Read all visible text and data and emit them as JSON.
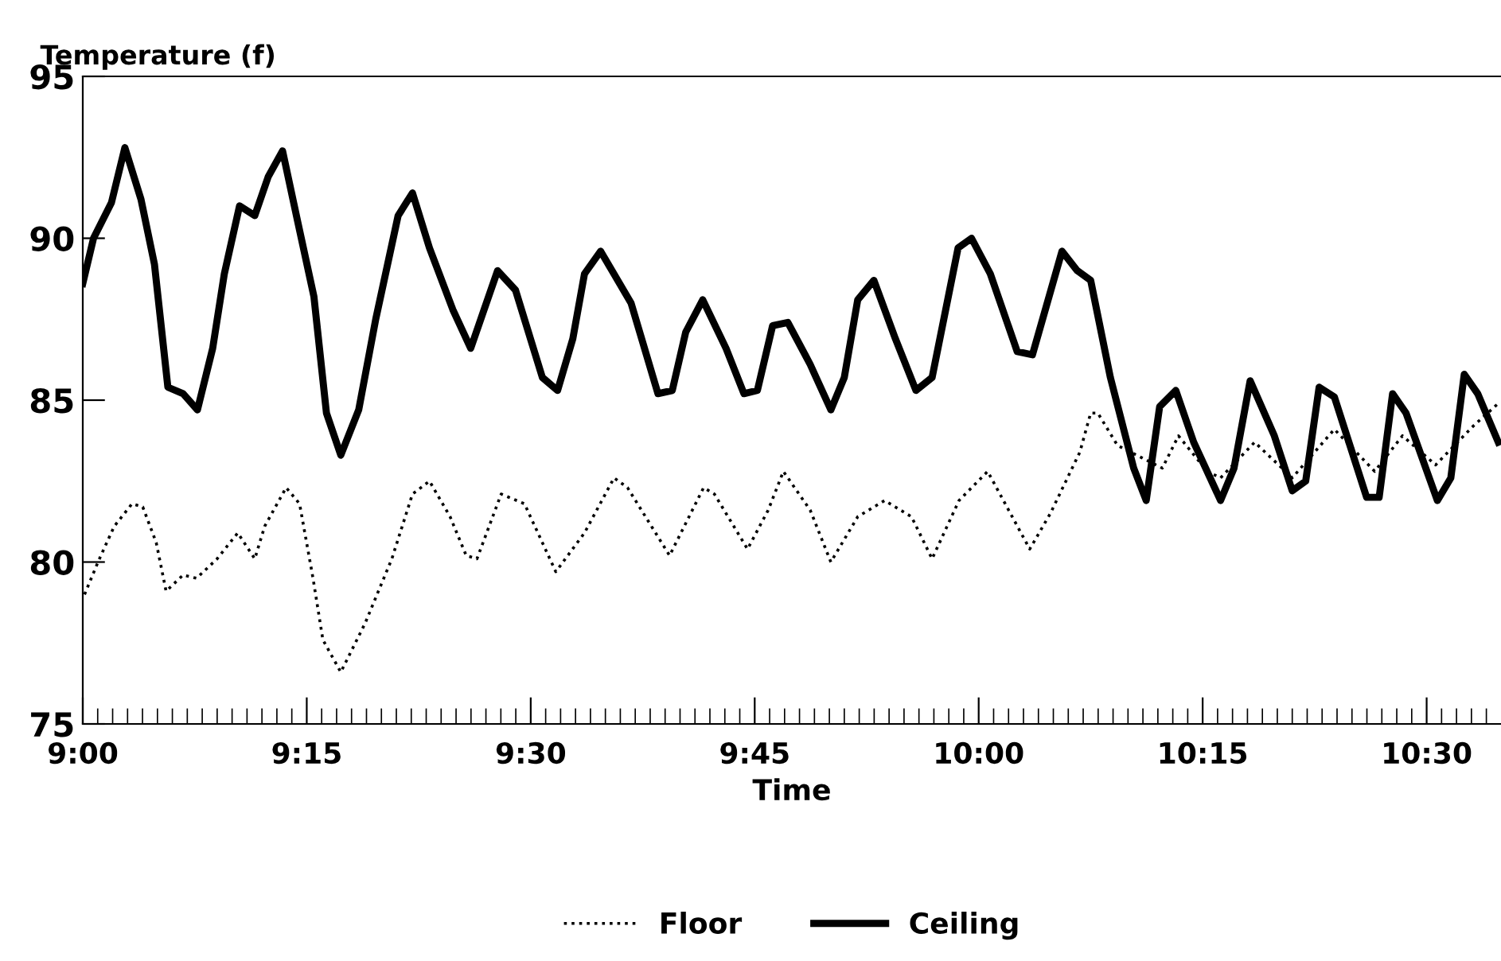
{
  "chart_data": {
    "type": "line",
    "ylabel": "Temperature (f)",
    "xlabel": "Time",
    "xlim": [
      9,
      10.583
    ],
    "xticks": [
      {
        "value": 9,
        "label": "9:00"
      },
      {
        "value": 9.25,
        "label": "9:15"
      },
      {
        "value": 9.5,
        "label": "9:30"
      },
      {
        "value": 9.75,
        "label": "9:45"
      },
      {
        "value": 10,
        "label": "10:00"
      },
      {
        "value": 10.25,
        "label": "10:15"
      },
      {
        "value": 10.5,
        "label": "10:30"
      }
    ],
    "ylim": [
      75,
      95
    ],
    "yticks": [
      75,
      80,
      85,
      90,
      95
    ],
    "grid": false,
    "legend": "bottom",
    "marker": "none",
    "series": [
      {
        "name": "Floor",
        "color": "#000000",
        "line_style": "dotted",
        "x": [
          9.002,
          9.017,
          9.035,
          9.055,
          9.067,
          9.082,
          9.093,
          9.112,
          9.127,
          9.15,
          9.173,
          9.192,
          9.203,
          9.227,
          9.242,
          9.257,
          9.268,
          9.288,
          9.315,
          9.345,
          9.368,
          9.387,
          9.41,
          9.428,
          9.44,
          9.467,
          9.493,
          9.528,
          9.56,
          9.593,
          9.608,
          9.655,
          9.693,
          9.705,
          9.742,
          9.765,
          9.782,
          9.812,
          9.835,
          9.865,
          9.895,
          9.925,
          9.948,
          9.978,
          10.01,
          10.057,
          10.08,
          10.113,
          10.125,
          10.133,
          10.155,
          10.205,
          10.223,
          10.255,
          10.27,
          10.308,
          10.35,
          10.397,
          10.442,
          10.473,
          10.51,
          10.552,
          10.58
        ],
        "values": [
          79.0,
          80.0,
          81.1,
          81.8,
          81.7,
          80.6,
          79.1,
          79.6,
          79.5,
          80.1,
          80.9,
          80.1,
          81.1,
          82.3,
          81.8,
          79.5,
          77.6,
          76.6,
          78.1,
          80.1,
          82.1,
          82.5,
          81.4,
          80.2,
          80.1,
          82.1,
          81.8,
          79.7,
          80.9,
          82.6,
          82.3,
          80.2,
          82.3,
          82.1,
          80.4,
          81.6,
          82.8,
          81.6,
          80.0,
          81.4,
          81.9,
          81.4,
          80.1,
          81.9,
          82.8,
          80.4,
          81.5,
          83.4,
          84.6,
          84.6,
          83.6,
          82.9,
          83.9,
          82.8,
          82.6,
          83.7,
          82.6,
          84.1,
          82.8,
          83.9,
          83.0,
          84.2,
          84.9
        ]
      },
      {
        "name": "Ceiling",
        "color": "#000000",
        "line_style": "solid",
        "x": [
          9.0,
          9.012,
          9.032,
          9.047,
          9.065,
          9.08,
          9.095,
          9.112,
          9.128,
          9.145,
          9.158,
          9.175,
          9.192,
          9.207,
          9.223,
          9.24,
          9.258,
          9.272,
          9.288,
          9.308,
          9.327,
          9.352,
          9.368,
          9.387,
          9.413,
          9.433,
          9.448,
          9.463,
          9.483,
          9.513,
          9.53,
          9.547,
          9.56,
          9.578,
          9.612,
          9.642,
          9.658,
          9.673,
          9.692,
          9.718,
          9.738,
          9.753,
          9.77,
          9.787,
          9.812,
          9.835,
          9.85,
          9.865,
          9.883,
          9.907,
          9.93,
          9.948,
          9.977,
          9.992,
          10.013,
          10.043,
          10.06,
          10.093,
          10.11,
          10.125,
          10.147,
          10.173,
          10.187,
          10.202,
          10.22,
          10.24,
          10.27,
          10.285,
          10.303,
          10.33,
          10.35,
          10.365,
          10.38,
          10.397,
          10.433,
          10.447,
          10.462,
          10.477,
          10.512,
          10.527,
          10.542,
          10.557,
          10.58
        ],
        "values": [
          88.6,
          90.0,
          91.1,
          92.8,
          91.2,
          89.2,
          85.4,
          85.2,
          84.7,
          86.6,
          88.9,
          91.0,
          90.7,
          91.9,
          92.7,
          90.5,
          88.2,
          84.6,
          83.3,
          84.7,
          87.5,
          90.7,
          91.4,
          89.7,
          87.8,
          86.6,
          87.8,
          89.0,
          88.4,
          85.7,
          85.3,
          86.9,
          88.9,
          89.6,
          88.0,
          85.2,
          85.3,
          87.1,
          88.1,
          86.6,
          85.2,
          85.3,
          87.3,
          87.4,
          86.1,
          84.7,
          85.7,
          88.1,
          88.7,
          86.9,
          85.3,
          85.7,
          89.7,
          90.0,
          88.9,
          86.5,
          86.4,
          89.6,
          89.0,
          88.7,
          85.7,
          82.9,
          81.9,
          84.8,
          85.3,
          83.7,
          81.9,
          82.9,
          85.6,
          83.9,
          82.2,
          82.5,
          85.4,
          85.1,
          82.0,
          82.0,
          85.2,
          84.6,
          81.9,
          82.6,
          85.8,
          85.2,
          83.7
        ]
      }
    ]
  }
}
